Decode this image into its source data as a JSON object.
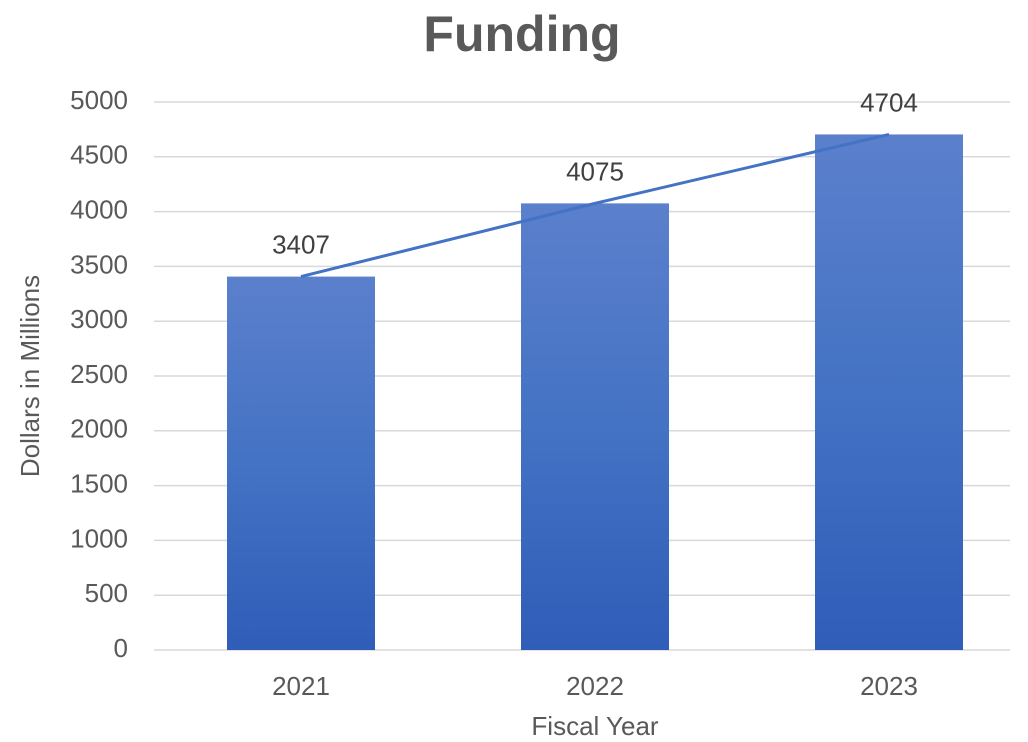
{
  "chart_data": {
    "type": "bar",
    "title": "Funding",
    "x_label": "Fiscal Year",
    "y_label": "Dollars in Millions",
    "categories": [
      "2021",
      "2022",
      "2023"
    ],
    "values": [
      3407,
      4075,
      4704
    ],
    "color": "#4472c4",
    "ylim": [
      0,
      5000
    ],
    "yticks": [
      0,
      500,
      1000,
      1500,
      2000,
      2500,
      3000,
      3500,
      4000,
      4500,
      5000
    ],
    "grid": true,
    "trendline": true
  }
}
